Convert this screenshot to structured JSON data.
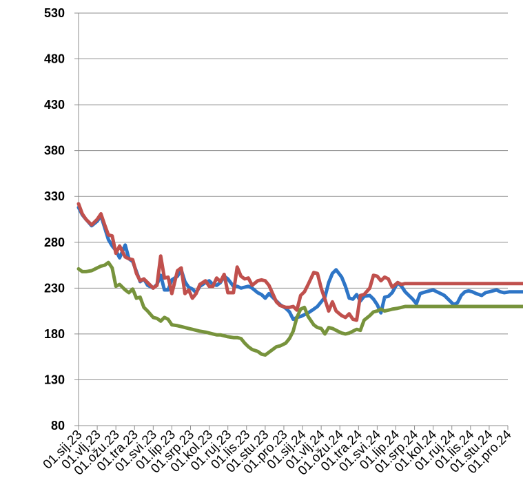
{
  "chart_data": {
    "type": "line",
    "title": "",
    "xlabel": "",
    "ylabel": "",
    "ylim": [
      80,
      530
    ],
    "yticks": [
      80,
      130,
      180,
      230,
      280,
      330,
      380,
      430,
      480,
      530
    ],
    "grid": true,
    "legend": "none",
    "x_tick_labels": [
      "01.sij.23",
      "01.vlj.23",
      "01.ožu.23",
      "01.tra.23",
      "01.svi.23",
      "01.lip.23",
      "01.srp.23",
      "01.kol.23",
      "01.ruj.23",
      "01.lis.23",
      "01.stu.23",
      "01.pro.23",
      "01.sij.24",
      "01.vlj.24",
      "01.ožu.24",
      "01.tra.24",
      "01.svi.24",
      "01.lip.24",
      "01.srp.24",
      "01.kol.24",
      "01.ruj.24",
      "01.lis.24",
      "01.stu.24",
      "01.pro.24"
    ],
    "x": [
      0,
      0.2,
      0.4,
      0.7,
      1.0,
      1.2,
      1.4,
      1.6,
      1.8,
      2.0,
      2.2,
      2.5,
      2.7,
      2.9,
      3.1,
      3.3,
      3.5,
      3.7,
      4.0,
      4.2,
      4.4,
      4.6,
      4.8,
      5.0,
      5.3,
      5.5,
      5.7,
      5.9,
      6.1,
      6.3,
      6.5,
      6.8,
      7.0,
      7.2,
      7.4,
      7.6,
      7.8,
      8.0,
      8.3,
      8.5,
      8.7,
      8.9,
      9.1,
      9.3,
      9.6,
      9.8,
      10.0,
      10.2,
      10.4,
      10.6,
      10.8,
      11.1,
      11.3,
      11.5,
      11.7,
      11.9,
      12.1,
      12.3,
      12.6,
      12.8,
      13.0,
      13.2,
      13.4,
      13.6,
      13.8,
      14.1,
      14.3,
      14.5,
      14.7,
      14.9,
      15.1,
      15.3,
      15.6,
      15.8,
      16.0,
      16.2,
      16.4,
      16.6,
      16.8,
      17.1,
      17.3,
      17.5,
      17.7,
      17.9,
      18.1,
      18.3,
      18.6,
      18.8,
      19.0,
      19.2,
      19.4,
      19.6,
      19.8,
      20.1,
      20.3,
      20.5,
      20.7,
      20.9,
      21.1,
      21.3,
      21.6,
      21.8,
      22.0,
      22.2,
      22.4,
      22.6,
      22.8,
      23.1,
      23.3,
      23.5,
      23.7,
      23.9
    ],
    "series": [
      {
        "color": "#2e75c6",
        "values": [
          318,
          310,
          305,
          298,
          303,
          309,
          296,
          283,
          276,
          271,
          263,
          277,
          262,
          259,
          248,
          237,
          240,
          233,
          230,
          234,
          244,
          228,
          228,
          239,
          243,
          250,
          237,
          231,
          229,
          225,
          232,
          236,
          238,
          234,
          233,
          236,
          243,
          240,
          232,
          232,
          230,
          231,
          232,
          230,
          225,
          223,
          219,
          224,
          220,
          216,
          212,
          208,
          204,
          196,
          198,
          199,
          201,
          203,
          207,
          210,
          215,
          220,
          236,
          246,
          250,
          242,
          232,
          219,
          218,
          223,
          216,
          221,
          222,
          218,
          212,
          203,
          220,
          221,
          225,
          236,
          232,
          226,
          222,
          218,
          213,
          224,
          226,
          227,
          228,
          226,
          224,
          222,
          218,
          212,
          214,
          222,
          226,
          227,
          226,
          224,
          222,
          225,
          226,
          227,
          228,
          226,
          225,
          226,
          226,
          226,
          226,
          226
        ]
      },
      {
        "color": "#c0504d",
        "values": [
          322,
          311,
          305,
          299,
          305,
          311,
          299,
          288,
          287,
          268,
          276,
          264,
          262,
          261,
          246,
          238,
          240,
          236,
          230,
          233,
          265,
          241,
          242,
          224,
          249,
          252,
          224,
          228,
          219,
          224,
          234,
          238,
          232,
          232,
          241,
          237,
          245,
          225,
          225,
          253,
          243,
          240,
          241,
          233,
          238,
          239,
          238,
          233,
          224,
          215,
          211,
          209,
          209,
          210,
          206,
          222,
          226,
          234,
          247,
          246,
          230,
          218,
          205,
          215,
          205,
          200,
          198,
          202,
          196,
          195,
          222,
          223,
          230,
          244,
          243,
          238,
          242,
          240,
          231,
          236,
          234,
          235,
          235,
          235,
          235,
          235,
          235,
          235,
          235,
          235,
          235,
          235,
          235,
          235,
          235,
          235,
          235,
          235,
          235,
          235,
          235,
          235,
          235,
          235,
          235,
          235,
          235,
          235,
          235,
          235,
          235,
          235
        ]
      },
      {
        "color": "#77933c",
        "values": [
          251,
          248,
          248,
          249,
          252,
          254,
          255,
          258,
          252,
          232,
          234,
          228,
          225,
          229,
          219,
          220,
          209,
          205,
          198,
          197,
          194,
          198,
          196,
          190,
          189,
          188,
          187,
          186,
          185,
          184,
          183,
          182,
          181,
          180,
          179,
          179,
          178,
          177,
          176,
          176,
          175,
          170,
          166,
          163,
          161,
          158,
          157,
          160,
          163,
          166,
          167,
          170,
          175,
          183,
          198,
          207,
          209,
          199,
          190,
          187,
          186,
          180,
          187,
          186,
          184,
          181,
          180,
          181,
          183,
          185,
          184,
          195,
          200,
          204,
          205,
          207,
          205,
          206,
          207,
          208,
          209,
          210,
          210,
          210,
          210,
          210,
          210,
          210,
          210,
          210,
          210,
          210,
          210,
          210,
          210,
          210,
          210,
          210,
          210,
          210,
          210,
          210,
          210,
          210,
          210,
          210,
          210,
          210,
          210,
          210,
          210,
          210
        ]
      }
    ]
  }
}
